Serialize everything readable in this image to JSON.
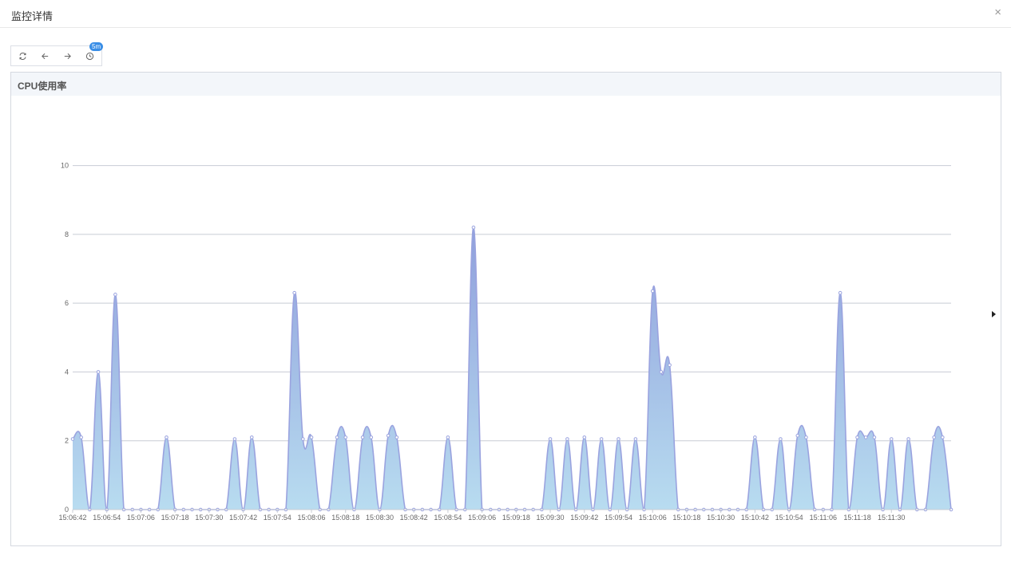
{
  "header": {
    "title": "监控详情",
    "close_label": "×"
  },
  "toolbar": {
    "refresh_icon": "refresh-icon",
    "prev_icon": "arrow-left-icon",
    "next_icon": "arrow-right-icon",
    "timer_icon": "clock-icon",
    "interval_badge": "5m"
  },
  "panel": {
    "title": "CPU使用率"
  },
  "colors": {
    "line": "#9aa3df",
    "fill_top": "#8fa0dc",
    "fill_bottom": "#b8dcf0",
    "grid": "#c8ccd4"
  },
  "chart_data": {
    "type": "area",
    "title": "CPU使用率",
    "xlabel": "",
    "ylabel": "",
    "ylim": [
      0,
      10.5
    ],
    "yticks": [
      0,
      2,
      4,
      6,
      8,
      10
    ],
    "x_tick_labels": [
      "15:06:42",
      "15:06:54",
      "15:07:06",
      "15:07:18",
      "15:07:30",
      "15:07:42",
      "15:07:54",
      "15:08:06",
      "15:08:18",
      "15:08:30",
      "15:08:42",
      "15:08:54",
      "15:09:06",
      "15:09:18",
      "15:09:30",
      "15:09:42",
      "15:09:54",
      "15:10:06",
      "15:10:18",
      "15:10:30",
      "15:10:42",
      "15:10:54",
      "15:11:06",
      "15:11:18",
      "15:11:30"
    ],
    "grid": true,
    "series": [
      {
        "interval_seconds": 3,
        "start": "15:06:42",
        "values": [
          2.05,
          2.1,
          0,
          4,
          0,
          6.25,
          0,
          0,
          0,
          0,
          0,
          2.1,
          0,
          0,
          0,
          0,
          0,
          0,
          0,
          2.05,
          0,
          2.1,
          0,
          0,
          0,
          0,
          6.3,
          2.05,
          2.1,
          0,
          0,
          2.1,
          2.1,
          0,
          2.1,
          2.1,
          0,
          2.15,
          2.1,
          0,
          0,
          0,
          0,
          0,
          2.1,
          0,
          0,
          8.2,
          0,
          0,
          0,
          0,
          0,
          0,
          0,
          0,
          2.05,
          0,
          2.05,
          0,
          2.1,
          0,
          2.05,
          0,
          2.05,
          0,
          2.05,
          0,
          6.35,
          4.0,
          4.2,
          0,
          0,
          0,
          0,
          0,
          0,
          0,
          0,
          0,
          2.1,
          0,
          0,
          2.05,
          0,
          2.15,
          2.1,
          0,
          0,
          0,
          6.3,
          0,
          2.1,
          2.1,
          2.1,
          0,
          2.05,
          0,
          2.05,
          0,
          0,
          2.1,
          2.1,
          0
        ]
      }
    ]
  }
}
